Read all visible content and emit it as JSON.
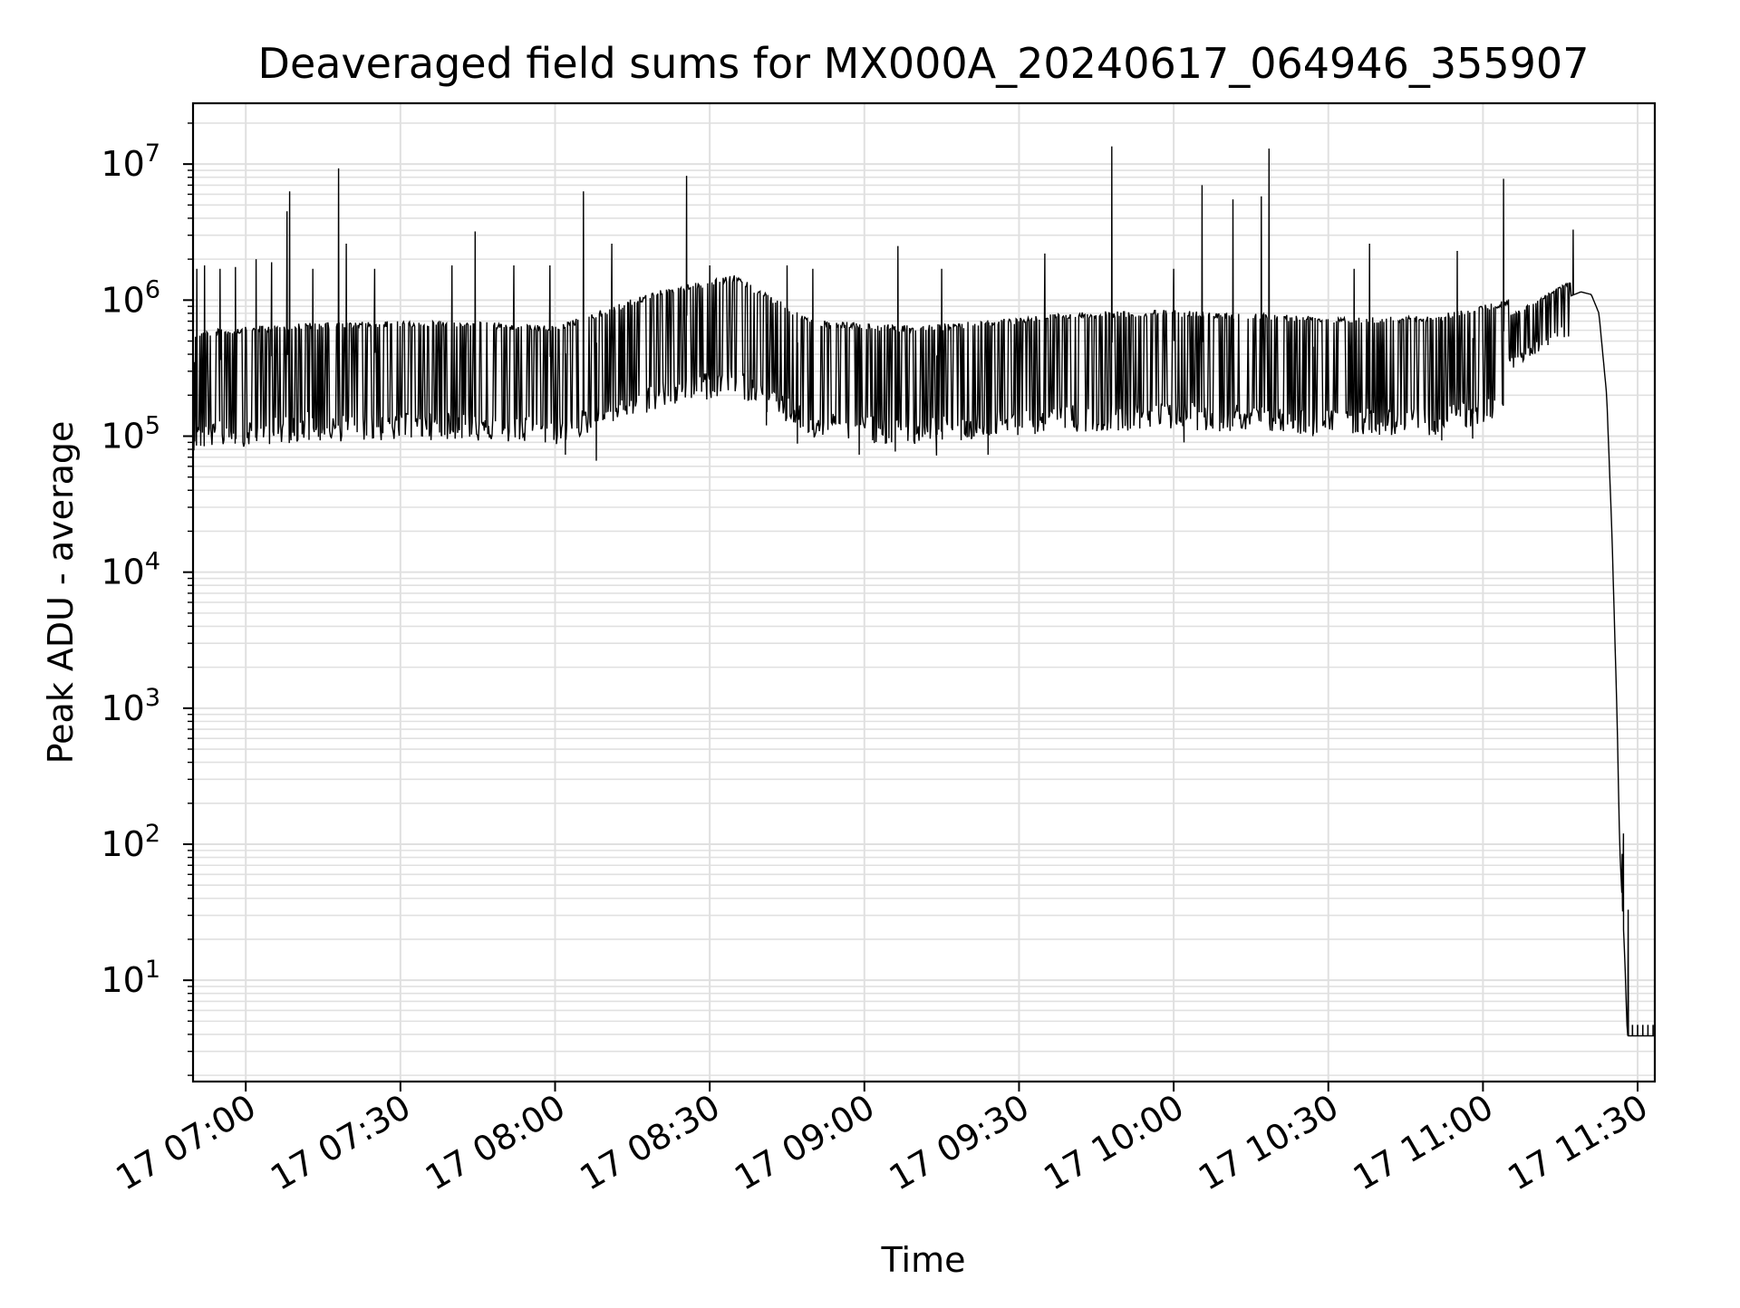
{
  "chart_data": {
    "type": "line",
    "title": "Deaveraged field sums for MX000A_20240617_064946_355907",
    "xlabel": "Time",
    "ylabel": "Peak ADU - average",
    "yscale": "log",
    "ylim": [
      1.8,
      28000000
    ],
    "xlim": [
      "06:49:46",
      "11:33:20"
    ],
    "grid": true,
    "line_color": "#000000",
    "grid_color": "#e0e0e0",
    "x_tick_labels": [
      "17 07:00",
      "17 07:30",
      "17 08:00",
      "17 08:30",
      "17 09:00",
      "17 09:30",
      "17 10:00",
      "17 10:30",
      "17 11:00",
      "17 11:30"
    ],
    "x_tick_times": [
      "07:00",
      "07:30",
      "08:00",
      "08:30",
      "09:00",
      "09:30",
      "10:00",
      "10:30",
      "11:00",
      "11:30"
    ],
    "y_tick_labels": [
      {
        "base": "10",
        "exp": "1",
        "value": 10
      },
      {
        "base": "10",
        "exp": "2",
        "value": 100
      },
      {
        "base": "10",
        "exp": "3",
        "value": 1000
      },
      {
        "base": "10",
        "exp": "4",
        "value": 10000
      },
      {
        "base": "10",
        "exp": "5",
        "value": 100000
      },
      {
        "base": "10",
        "exp": "6",
        "value": 1000000
      },
      {
        "base": "10",
        "exp": "7",
        "value": 10000000
      }
    ],
    "series": [
      {
        "baseline": [
          {
            "t": "06:49:46",
            "v": 350000
          },
          {
            "t": "07:10:00",
            "v": 400000
          },
          {
            "t": "07:40:00",
            "v": 420000
          },
          {
            "t": "08:00:00",
            "v": 380000
          },
          {
            "t": "08:20:00",
            "v": 700000
          },
          {
            "t": "08:35:00",
            "v": 900000
          },
          {
            "t": "08:50:00",
            "v": 420000
          },
          {
            "t": "09:10:00",
            "v": 380000
          },
          {
            "t": "09:40:00",
            "v": 480000
          },
          {
            "t": "10:00:00",
            "v": 500000
          },
          {
            "t": "10:30:00",
            "v": 450000
          },
          {
            "t": "10:50:00",
            "v": 450000
          },
          {
            "t": "11:05:00",
            "v": 600000
          },
          {
            "t": "11:15:00",
            "v": 1000000
          },
          {
            "t": "11:19:00",
            "v": 1150000
          },
          {
            "t": "11:21:00",
            "v": 1100000
          },
          {
            "t": "11:22:30",
            "v": 800000
          },
          {
            "t": "11:24:00",
            "v": 200000
          },
          {
            "t": "11:25:00",
            "v": 20000
          },
          {
            "t": "11:26:00",
            "v": 900
          },
          {
            "t": "11:26:30",
            "v": 100
          },
          {
            "t": "11:27:30",
            "v": 15
          },
          {
            "t": "11:28:00",
            "v": 3.9
          },
          {
            "t": "11:33:20",
            "v": 3.9
          }
        ],
        "spikes": [
          {
            "t": "06:50:30",
            "v": 1700000
          },
          {
            "t": "06:52:00",
            "v": 1800000
          },
          {
            "t": "06:55:00",
            "v": 1700000
          },
          {
            "t": "06:58:00",
            "v": 1750000
          },
          {
            "t": "07:02:00",
            "v": 2000000
          },
          {
            "t": "07:05:00",
            "v": 1900000
          },
          {
            "t": "07:08:00",
            "v": 4500000
          },
          {
            "t": "07:08:30",
            "v": 6300000
          },
          {
            "t": "07:13:00",
            "v": 1700000
          },
          {
            "t": "07:18:00",
            "v": 9300000
          },
          {
            "t": "07:19:30",
            "v": 2600000
          },
          {
            "t": "07:25:00",
            "v": 1700000
          },
          {
            "t": "07:40:00",
            "v": 1800000
          },
          {
            "t": "07:44:30",
            "v": 3200000
          },
          {
            "t": "07:52:00",
            "v": 1800000
          },
          {
            "t": "07:59:00",
            "v": 1800000
          },
          {
            "t": "08:05:30",
            "v": 6300000
          },
          {
            "t": "08:11:00",
            "v": 2600000
          },
          {
            "t": "08:25:30",
            "v": 8200000
          },
          {
            "t": "08:30:00",
            "v": 1800000
          },
          {
            "t": "08:45:00",
            "v": 1800000
          },
          {
            "t": "08:50:00",
            "v": 1700000
          },
          {
            "t": "09:06:30",
            "v": 2500000
          },
          {
            "t": "09:15:00",
            "v": 1700000
          },
          {
            "t": "09:35:00",
            "v": 2200000
          },
          {
            "t": "09:48:00",
            "v": 13500000
          },
          {
            "t": "10:00:00",
            "v": 1700000
          },
          {
            "t": "10:05:30",
            "v": 7000000
          },
          {
            "t": "10:11:30",
            "v": 5500000
          },
          {
            "t": "10:17:00",
            "v": 5800000
          },
          {
            "t": "10:18:30",
            "v": 13000000
          },
          {
            "t": "10:35:00",
            "v": 1700000
          },
          {
            "t": "10:38:00",
            "v": 2600000
          },
          {
            "t": "10:55:00",
            "v": 2300000
          },
          {
            "t": "11:04:00",
            "v": 7800000
          },
          {
            "t": "11:17:30",
            "v": 3300000
          }
        ],
        "dips": [
          {
            "t": "06:50:00",
            "v": 105000
          },
          {
            "t": "07:12:00",
            "v": 150000
          },
          {
            "t": "07:38:00",
            "v": 100000
          },
          {
            "t": "07:50:00",
            "v": 110000
          },
          {
            "t": "08:02:00",
            "v": 73000
          },
          {
            "t": "08:08:00",
            "v": 66000
          },
          {
            "t": "08:41:00",
            "v": 120000
          },
          {
            "t": "08:47:00",
            "v": 88000
          },
          {
            "t": "08:59:00",
            "v": 73000
          },
          {
            "t": "09:06:00",
            "v": 77000
          },
          {
            "t": "09:14:00",
            "v": 72000
          },
          {
            "t": "09:24:00",
            "v": 73000
          },
          {
            "t": "09:46:00",
            "v": 110000
          },
          {
            "t": "10:02:00",
            "v": 90000
          },
          {
            "t": "10:27:00",
            "v": 100000
          },
          {
            "t": "10:52:00",
            "v": 93000
          },
          {
            "t": "10:58:00",
            "v": 96000
          },
          {
            "t": "11:27:00",
            "v": 85
          },
          {
            "t": "11:27:15",
            "v": 120
          },
          {
            "t": "11:28:10",
            "v": 33
          }
        ],
        "floor_ticks": [
          {
            "t": "11:29:00",
            "v": 4.7
          },
          {
            "t": "11:30:00",
            "v": 4.7
          },
          {
            "t": "11:31:00",
            "v": 4.7
          },
          {
            "t": "11:32:00",
            "v": 4.7
          },
          {
            "t": "11:33:00",
            "v": 4.7
          }
        ]
      }
    ]
  }
}
